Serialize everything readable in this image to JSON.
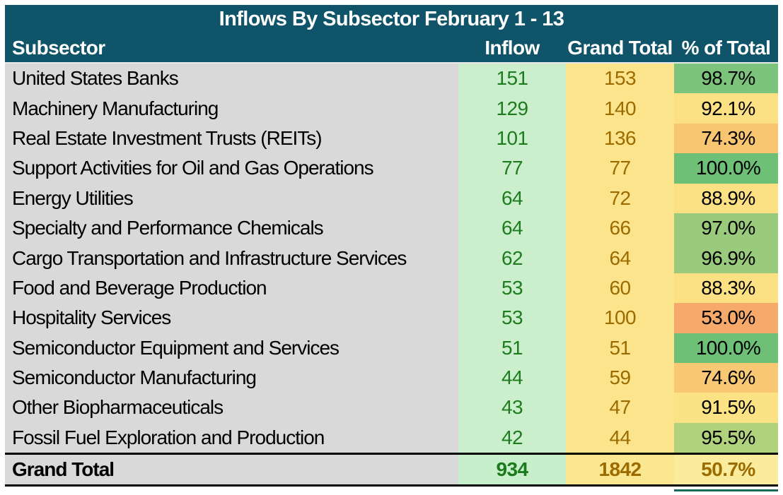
{
  "title": "Inflows By Subsector February 1 - 13",
  "columns": {
    "subsector": "Subsector",
    "inflow": "Inflow",
    "grand_total": "Grand Total",
    "pct_of_total": "% of Total"
  },
  "colors": {
    "header_bg": "#0F5469",
    "header_text": "#FFFFFF",
    "subsector_bg": "#D9D9D9",
    "inflow_bg": "#CBEFCD",
    "inflow_text": "#1E7C1E",
    "grand_total_bg": "#FBE48B",
    "grand_total_text": "#9C6B00",
    "footer_pct_bg": "#FBEC9D",
    "bottom_accent": "#17695A"
  },
  "rows": [
    {
      "name": "United States Banks",
      "inflow": "151",
      "grand_total": "153",
      "pct": "98.7%",
      "pct_color": "#7CC47C"
    },
    {
      "name": "Machinery Manufacturing",
      "inflow": "129",
      "grand_total": "140",
      "pct": "92.1%",
      "pct_color": "#FCE184"
    },
    {
      "name": "Real Estate Investment Trusts (REITs)",
      "inflow": "101",
      "grand_total": "136",
      "pct": "74.3%",
      "pct_color": "#F8C671"
    },
    {
      "name": "Support Activities for Oil and Gas Operations",
      "inflow": "77",
      "grand_total": "77",
      "pct": "100.0%",
      "pct_color": "#6DC076"
    },
    {
      "name": "Energy Utilities",
      "inflow": "64",
      "grand_total": "72",
      "pct": "88.9%",
      "pct_color": "#FCE184"
    },
    {
      "name": "Specialty and Performance Chemicals",
      "inflow": "64",
      "grand_total": "66",
      "pct": "97.0%",
      "pct_color": "#9ACA7B"
    },
    {
      "name": "Cargo Transportation and Infrastructure Services",
      "inflow": "62",
      "grand_total": "64",
      "pct": "96.9%",
      "pct_color": "#9ACA7B"
    },
    {
      "name": "Food and Beverage Production",
      "inflow": "53",
      "grand_total": "60",
      "pct": "88.3%",
      "pct_color": "#FCE184"
    },
    {
      "name": "Hospitality Services",
      "inflow": "53",
      "grand_total": "100",
      "pct": "53.0%",
      "pct_color": "#F5A96B"
    },
    {
      "name": "Semiconductor Equipment and Services",
      "inflow": "51",
      "grand_total": "51",
      "pct": "100.0%",
      "pct_color": "#6DC076"
    },
    {
      "name": "Semiconductor Manufacturing",
      "inflow": "44",
      "grand_total": "59",
      "pct": "74.6%",
      "pct_color": "#F8C874"
    },
    {
      "name": "Other Biopharmaceuticals",
      "inflow": "43",
      "grand_total": "47",
      "pct": "91.5%",
      "pct_color": "#FBE284"
    },
    {
      "name": "Fossil Fuel Exploration and Production",
      "inflow": "42",
      "grand_total": "44",
      "pct": "95.5%",
      "pct_color": "#B1D27D"
    }
  ],
  "grand_total_row": {
    "label": "Grand Total",
    "inflow": "934",
    "grand_total": "1842",
    "pct": "50.7%"
  },
  "chart_data": {
    "type": "table",
    "title": "Inflows By Subsector February 1 - 13",
    "columns": [
      "Subsector",
      "Inflow",
      "Grand Total",
      "% of Total"
    ],
    "rows": [
      [
        "United States Banks",
        151,
        153,
        98.7
      ],
      [
        "Machinery Manufacturing",
        129,
        140,
        92.1
      ],
      [
        "Real Estate Investment Trusts (REITs)",
        101,
        136,
        74.3
      ],
      [
        "Support Activities for Oil and Gas Operations",
        77,
        77,
        100.0
      ],
      [
        "Energy Utilities",
        64,
        72,
        88.9
      ],
      [
        "Specialty and Performance Chemicals",
        64,
        66,
        97.0
      ],
      [
        "Cargo Transportation and Infrastructure Services",
        62,
        64,
        96.9
      ],
      [
        "Food and Beverage Production",
        53,
        60,
        88.3
      ],
      [
        "Hospitality Services",
        53,
        100,
        53.0
      ],
      [
        "Semiconductor Equipment and Services",
        51,
        51,
        100.0
      ],
      [
        "Semiconductor Manufacturing",
        44,
        59,
        74.6
      ],
      [
        "Other Biopharmaceuticals",
        43,
        47,
        91.5
      ],
      [
        "Fossil Fuel Exploration and Production",
        42,
        44,
        95.5
      ]
    ],
    "grand_total": [
      "Grand Total",
      934,
      1842,
      50.7
    ],
    "notes": "Percent-of-total column uses a red-yellow-green conditional color scale; grand total row excluded from the scale"
  }
}
